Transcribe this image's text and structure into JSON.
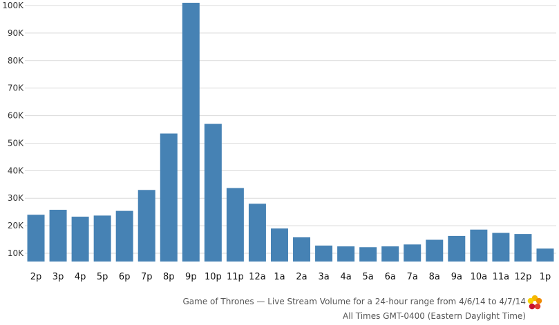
{
  "chart_data": {
    "type": "bar",
    "categories": [
      "2p",
      "3p",
      "4p",
      "5p",
      "6p",
      "7p",
      "8p",
      "9p",
      "10p",
      "11p",
      "12a",
      "1a",
      "2a",
      "3a",
      "4a",
      "5a",
      "6a",
      "7a",
      "8a",
      "9a",
      "10a",
      "11a",
      "12p",
      "1p"
    ],
    "values": [
      24000,
      25800,
      23300,
      23700,
      25400,
      33000,
      53500,
      101000,
      57000,
      33700,
      28000,
      19000,
      15800,
      12800,
      12500,
      12200,
      12500,
      13200,
      14900,
      16300,
      18600,
      17400,
      17000,
      11700
    ],
    "ylim": [
      7000,
      100000
    ],
    "yticks": [
      10000,
      20000,
      30000,
      40000,
      50000,
      60000,
      70000,
      80000,
      90000,
      100000
    ],
    "ytick_labels": [
      "10K",
      "20K",
      "30K",
      "40K",
      "50K",
      "60K",
      "70K",
      "80K",
      "90K",
      "100K"
    ],
    "bar_color": "#4682b4",
    "grid_color": "#d9d9d9",
    "grid": true,
    "title": "",
    "xlabel": "",
    "ylabel": ""
  },
  "caption": {
    "line1": "Game of Thrones — Live Stream Volume for a 24-hour range from 4/6/14 to 4/7/14",
    "line2": "All Times GMT-0400 (Eastern Daylight Time)"
  },
  "logo": {
    "name": "flower-logo-icon",
    "colors": [
      "#f5b800",
      "#f08a00",
      "#e03c2e",
      "#c8102e",
      "#f7d000"
    ]
  }
}
